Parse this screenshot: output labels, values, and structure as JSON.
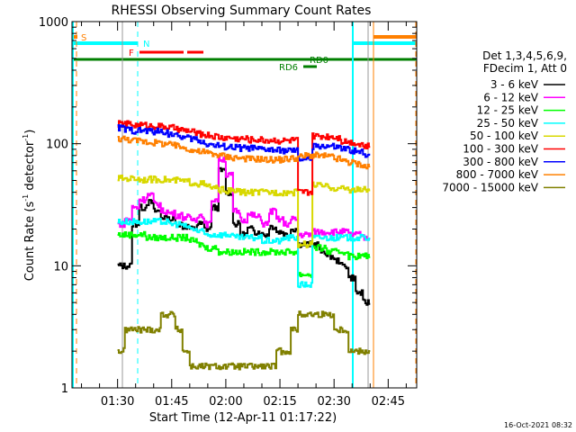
{
  "chart_data": {
    "type": "line",
    "title": "RHESSI Observing Summary Count Rates",
    "xlabel": "Start Time (12-Apr-11 01:17:22)",
    "ylabel": "Count Rate (s",
    "ylabel_sup1": "-1",
    "ylabel_mid": " detector",
    "ylabel_sup2": "-1",
    "ylabel_end": ")",
    "yscale": "log",
    "ylim": [
      1,
      1000
    ],
    "xlim_minutes_after_0130": [
      -12.63,
      82.9
    ],
    "xticks": [
      {
        "label": "01:30",
        "min": 0
      },
      {
        "label": "01:45",
        "min": 15
      },
      {
        "label": "02:00",
        "min": 30
      },
      {
        "label": "02:15",
        "min": 45
      },
      {
        "label": "02:30",
        "min": 60
      },
      {
        "label": "02:45",
        "min": 75
      }
    ],
    "yticks": [
      {
        "label": "1",
        "value": 1
      },
      {
        "label": "10",
        "value": 10
      },
      {
        "label": "100",
        "value": 100
      },
      {
        "label": "1000",
        "value": 1000
      }
    ],
    "legend_header": [
      "Det 1,3,4,5,6,9,",
      "FDecim 1, Att 0"
    ],
    "legend_position": "right",
    "x_minutes_after_0130": [
      1,
      3,
      5,
      7,
      9,
      11,
      13,
      15,
      17,
      19,
      21,
      23,
      25,
      27,
      29,
      31,
      33,
      35,
      37,
      39,
      41,
      43,
      45,
      47,
      49,
      51,
      53,
      55,
      57,
      59,
      61,
      63,
      65,
      67,
      69
    ],
    "series": [
      {
        "name": "3 - 6 keV",
        "color": "#000000",
        "values": [
          10,
          10,
          22,
          30,
          33,
          28,
          25,
          24,
          22,
          21,
          20,
          22,
          20,
          30,
          60,
          40,
          22,
          18,
          20,
          19,
          18,
          21,
          19,
          18,
          20,
          15,
          15,
          15,
          13,
          12,
          11,
          10,
          8,
          6,
          5
        ]
      },
      {
        "name": "6 - 12 keV",
        "color": "#ff00ff",
        "values": [
          22,
          24,
          30,
          35,
          38,
          32,
          28,
          27,
          26,
          25,
          24,
          26,
          22,
          35,
          75,
          55,
          28,
          24,
          26,
          25,
          22,
          28,
          24,
          22,
          24,
          18,
          18,
          19,
          19,
          19,
          19,
          19,
          18,
          18,
          17
        ]
      },
      {
        "name": "12 - 25 keV",
        "color": "#00ff00",
        "values": [
          18,
          18,
          18,
          18,
          17,
          17,
          17,
          17,
          17,
          17,
          16,
          15,
          14,
          14,
          13,
          13,
          13,
          13,
          13,
          13,
          13,
          13,
          13,
          13,
          13,
          8.5,
          8.5,
          14,
          14,
          13,
          13,
          13,
          12,
          12,
          12
        ]
      },
      {
        "name": "25 - 50 keV",
        "color": "#00ffff",
        "values": [
          23,
          23,
          23,
          23,
          23,
          23,
          23,
          22,
          22,
          21,
          20,
          19,
          18,
          18,
          18,
          18,
          17,
          17,
          17,
          17,
          16,
          16,
          16,
          17,
          17,
          7,
          7,
          17,
          17,
          17,
          17,
          17,
          17,
          17,
          17
        ]
      },
      {
        "name": "50 - 100 keV",
        "color": "#d8d800",
        "values": [
          52,
          52,
          52,
          51,
          51,
          51,
          51,
          50,
          50,
          49,
          48,
          47,
          45,
          43,
          42,
          41,
          41,
          40,
          40,
          40,
          40,
          40,
          40,
          40,
          40,
          15,
          15,
          46,
          45,
          44,
          43,
          43,
          42,
          42,
          42
        ]
      },
      {
        "name": "100 - 300 keV",
        "color": "#ff0000",
        "values": [
          145,
          145,
          142,
          142,
          140,
          140,
          138,
          135,
          130,
          128,
          125,
          120,
          118,
          115,
          112,
          112,
          110,
          110,
          108,
          108,
          107,
          107,
          106,
          106,
          107,
          40,
          40,
          115,
          115,
          115,
          113,
          105,
          103,
          100,
          95
        ]
      },
      {
        "name": "300 - 800 keV",
        "color": "#0000ff",
        "values": [
          135,
          130,
          128,
          128,
          127,
          126,
          125,
          120,
          115,
          112,
          110,
          105,
          100,
          97,
          95,
          94,
          93,
          92,
          92,
          90,
          90,
          89,
          88,
          88,
          87,
          75,
          75,
          95,
          96,
          95,
          93,
          90,
          88,
          85,
          82
        ]
      },
      {
        "name": "800 - 7000 keV",
        "color": "#ff8000",
        "values": [
          110,
          108,
          106,
          105,
          103,
          102,
          100,
          98,
          95,
          92,
          88,
          86,
          84,
          82,
          80,
          78,
          77,
          76,
          75,
          75,
          74,
          74,
          74,
          75,
          76,
          78,
          80,
          80,
          79,
          78,
          75,
          72,
          70,
          68,
          65
        ]
      },
      {
        "name": "7000 - 15000 keV",
        "color": "#808000",
        "values": [
          2,
          3,
          3,
          3,
          3,
          3,
          4,
          4,
          3,
          2,
          1.5,
          1.5,
          1.5,
          1.5,
          1.5,
          1.5,
          1.5,
          1.5,
          1.5,
          1.5,
          1.5,
          1.5,
          2,
          2,
          3,
          4,
          4,
          4,
          4,
          4,
          3,
          3,
          2,
          2,
          2
        ]
      }
    ],
    "flags": {
      "s_label": "S",
      "n_label": "N",
      "f_label": "F",
      "rd0_label": "RD0",
      "rd6_label": "RD6"
    }
  },
  "footer": {
    "timestamp": "16-Oct-2021 08:32"
  }
}
